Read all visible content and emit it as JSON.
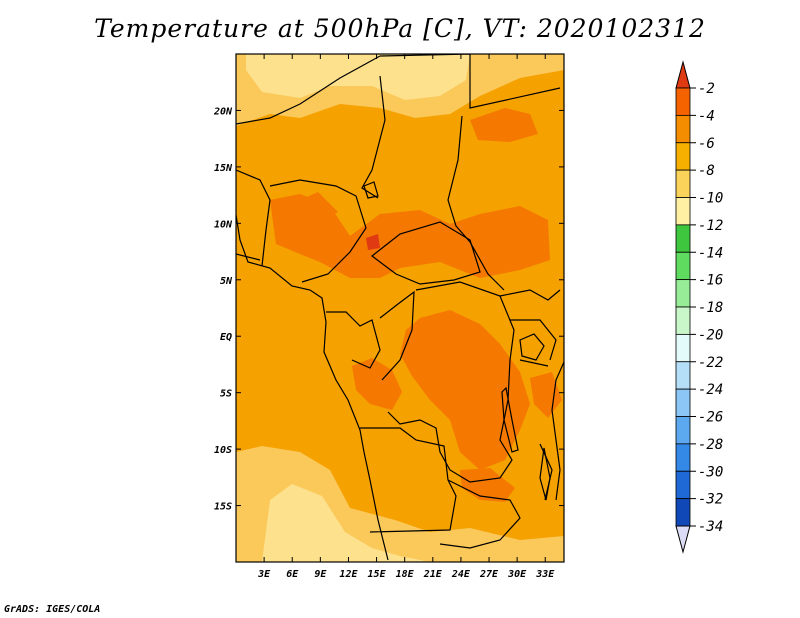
{
  "title": "Temperature at 500hPa [C], VT: 2020102312",
  "credit": "GrADS: IGES/COLA",
  "map": {
    "lon_range": [
      0,
      35
    ],
    "lat_range": [
      -20,
      25
    ],
    "x_ticks": [
      {
        "lon": 3,
        "label": "3E"
      },
      {
        "lon": 6,
        "label": "6E"
      },
      {
        "lon": 9,
        "label": "9E"
      },
      {
        "lon": 12,
        "label": "12E"
      },
      {
        "lon": 15,
        "label": "15E"
      },
      {
        "lon": 18,
        "label": "18E"
      },
      {
        "lon": 21,
        "label": "21E"
      },
      {
        "lon": 24,
        "label": "24E"
      },
      {
        "lon": 27,
        "label": "27E"
      },
      {
        "lon": 30,
        "label": "30E"
      },
      {
        "lon": 33,
        "label": "33E"
      }
    ],
    "y_ticks": [
      {
        "lat": 20,
        "label": "20N"
      },
      {
        "lat": 15,
        "label": "15N"
      },
      {
        "lat": 10,
        "label": "10N"
      },
      {
        "lat": 5,
        "label": "5N"
      },
      {
        "lat": 0,
        "label": "EQ"
      },
      {
        "lat": -5,
        "label": "5S"
      },
      {
        "lat": -10,
        "label": "10S"
      },
      {
        "lat": -15,
        "label": "15S"
      }
    ],
    "base_color": "#f5a100"
  },
  "colorbar": {
    "labels": [
      "-2",
      "-4",
      "-6",
      "-8",
      "-10",
      "-12",
      "-14",
      "-16",
      "-18",
      "-20",
      "-22",
      "-24",
      "-26",
      "-28",
      "-30",
      "-32",
      "-34"
    ],
    "colors": [
      "#ea3d00",
      "#f56200",
      "#f58d00",
      "#f5b000",
      "#fad35a",
      "#fff0a3",
      "#3ec73e",
      "#5fdc5f",
      "#97ed97",
      "#c9f7c9",
      "#e4fbfb",
      "#b5dff9",
      "#8bc6f6",
      "#5ca9f0",
      "#3489e6",
      "#1f69d6",
      "#1048b7",
      "#0b1f86",
      "#dcdcf6"
    ],
    "top_color": "#e03a12",
    "bottom_color": "#dcdcf6"
  }
}
